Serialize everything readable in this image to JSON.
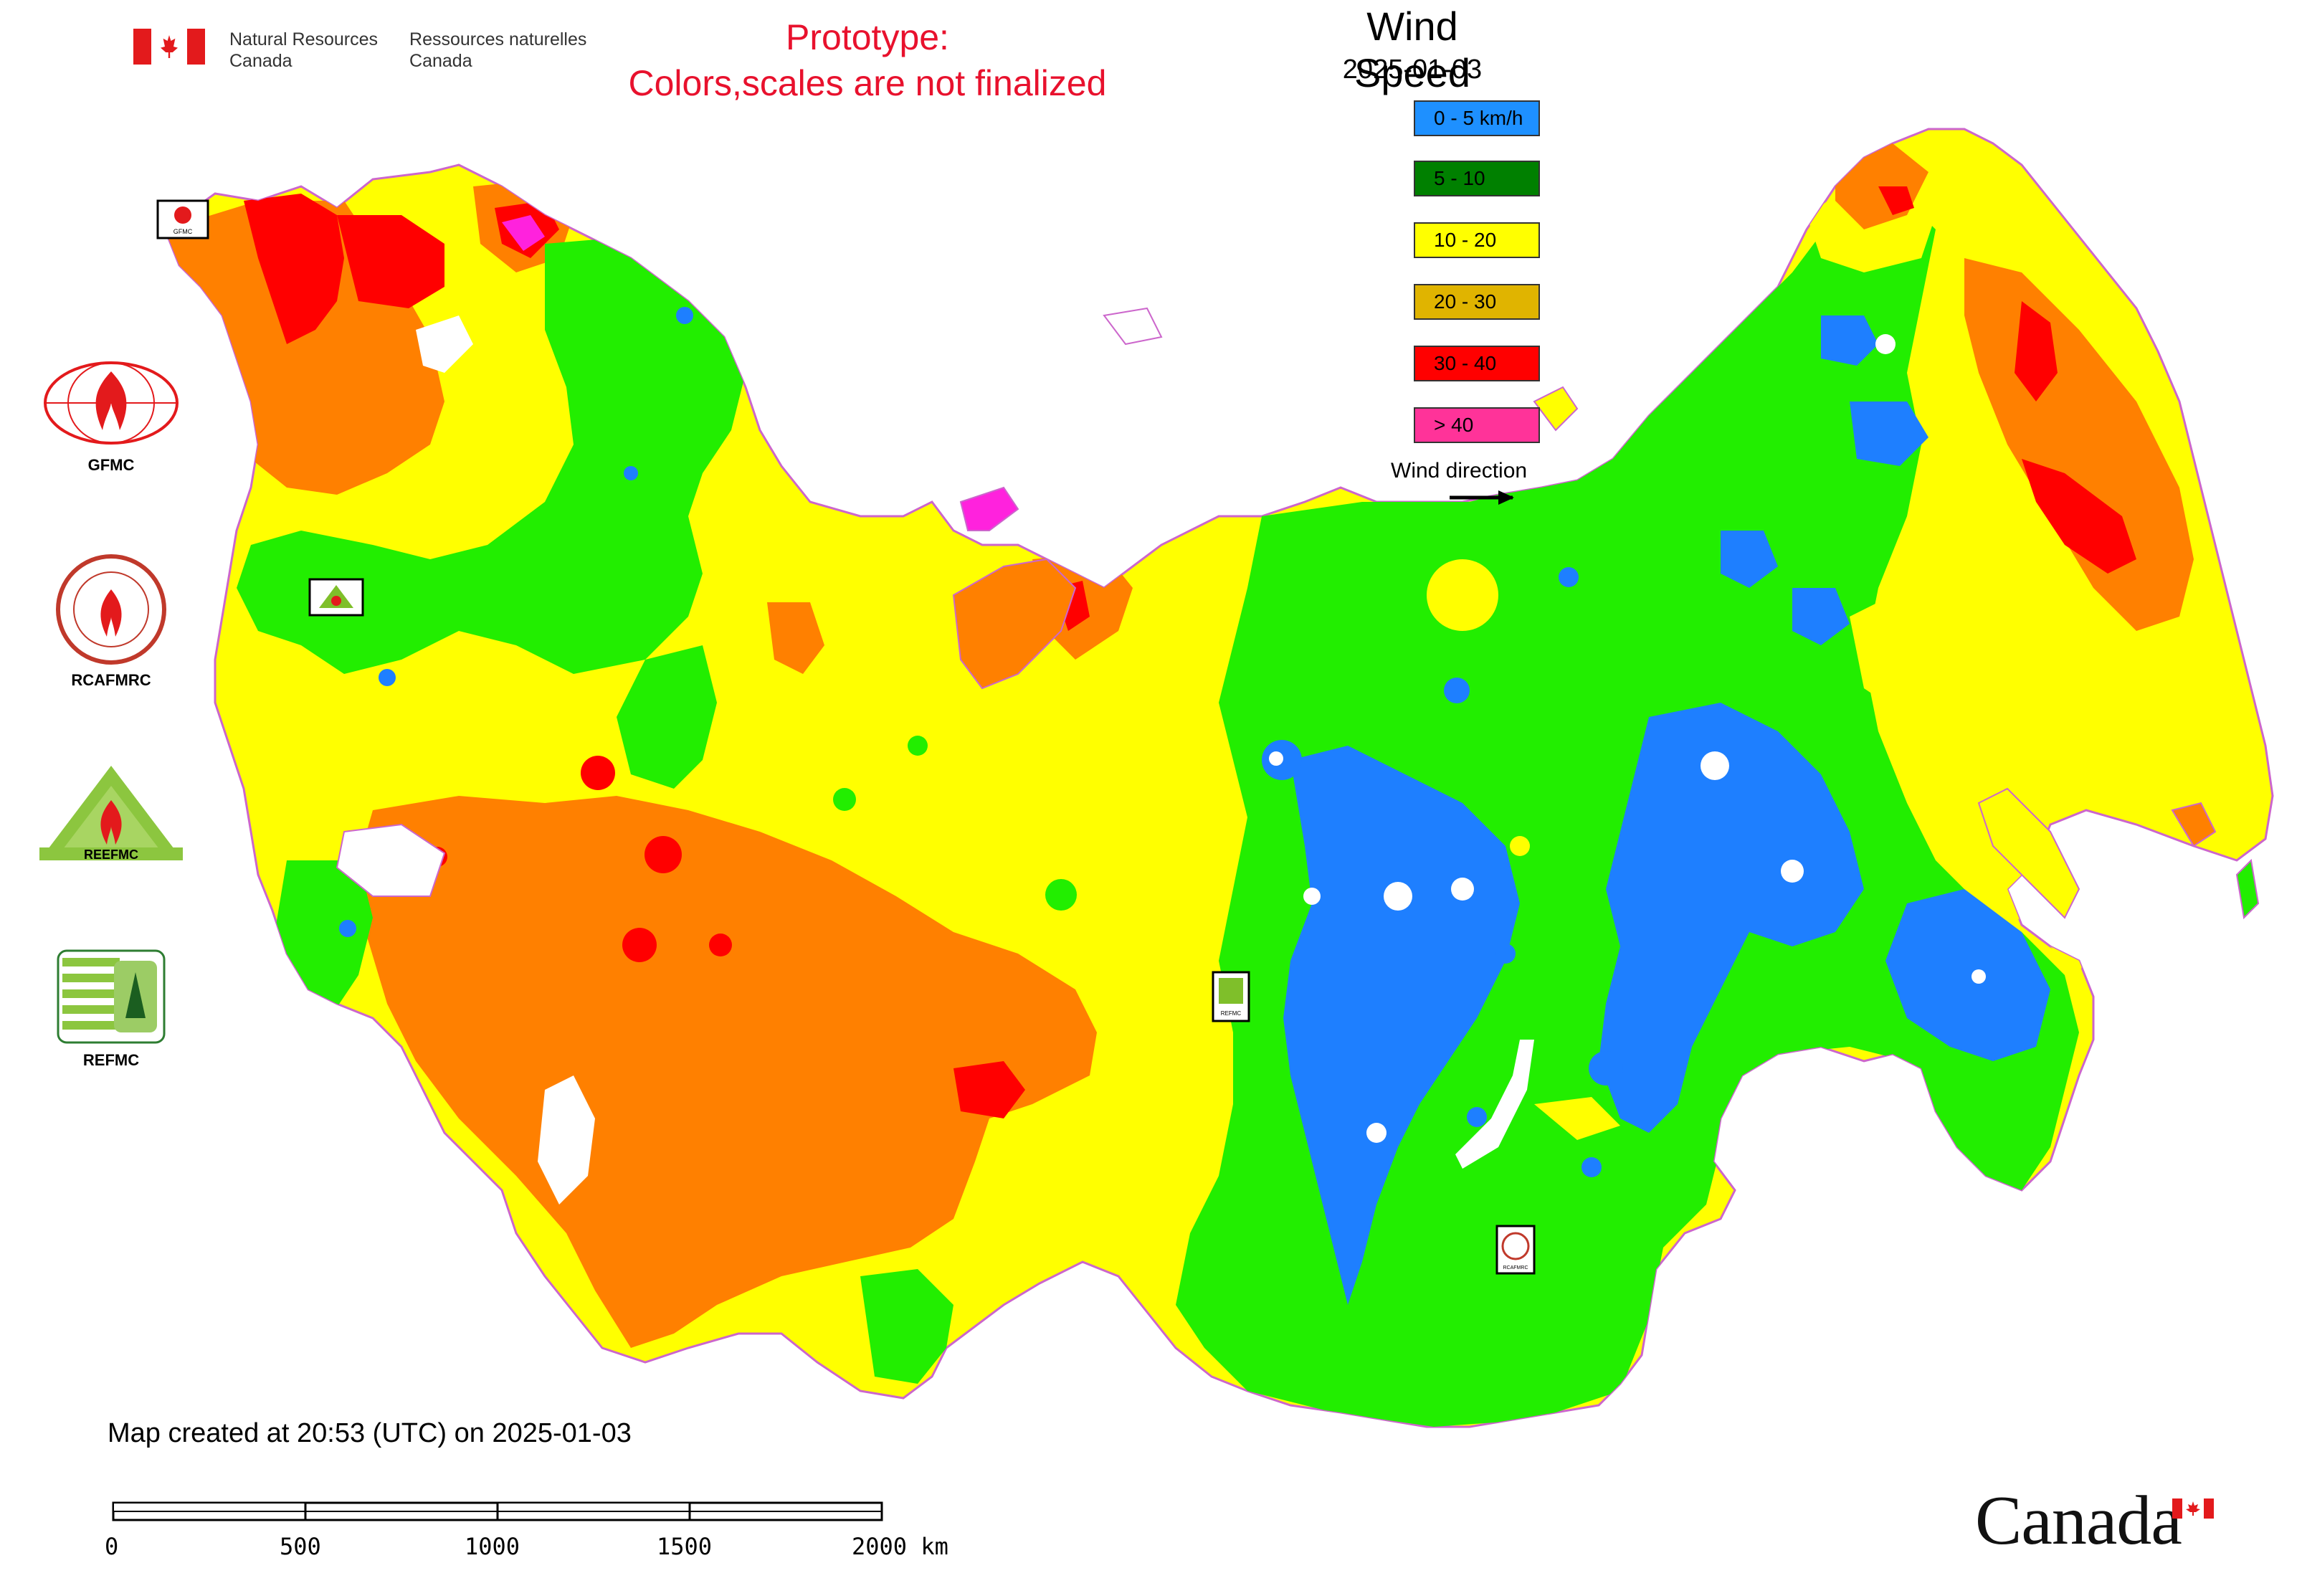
{
  "header": {
    "department_en_line1": "Natural Resources",
    "department_en_line2": "Canada",
    "department_fr_line1": "Ressources naturelles",
    "department_fr_line2": "Canada",
    "prototype_line1": "Prototype:",
    "prototype_line2": "Colors,scales are not finalized"
  },
  "legend": {
    "title": "Wind Speed",
    "date": "2025-01-03",
    "items": [
      {
        "label": "0 - 5 km/h",
        "color": "#1e90ff"
      },
      {
        "label": "5 - 10",
        "color": "#008000"
      },
      {
        "label": "10 - 20",
        "color": "#ffff00"
      },
      {
        "label": "20 - 30",
        "color": "#e0b400"
      },
      {
        "label": "30 - 40",
        "color": "#ff0000"
      },
      {
        "label": "> 40",
        "color": "#ff3399"
      }
    ],
    "wind_direction_label": "Wind direction"
  },
  "side_logos": [
    {
      "name": "GFMC",
      "icon": "gfmc-logo-icon"
    },
    {
      "name": "RCAFMRC",
      "icon": "rcafmrc-logo-icon"
    },
    {
      "name": "REEFMC",
      "icon": "reefmc-logo-icon"
    },
    {
      "name": "REFMC",
      "icon": "refmc-logo-icon"
    }
  ],
  "map_markers": {
    "gfmc": "GFMC",
    "reefmc": "REEFMC",
    "refmc": "REFMC",
    "rcafmrc": "RCAFMRC"
  },
  "map_colors": {
    "calm": "#1e7fff",
    "light": "#22ee00",
    "moderate": "#ffff00",
    "fresh": "#ff8000",
    "strong": "#ff0000",
    "extreme": "#ff22dd"
  },
  "footer": {
    "created": "Map created at 20:53 (UTC) on 2025-01-03",
    "scale_ticks": [
      "0",
      "500",
      "1000",
      "1500",
      "2000 km"
    ],
    "wordmark": "Canada"
  }
}
